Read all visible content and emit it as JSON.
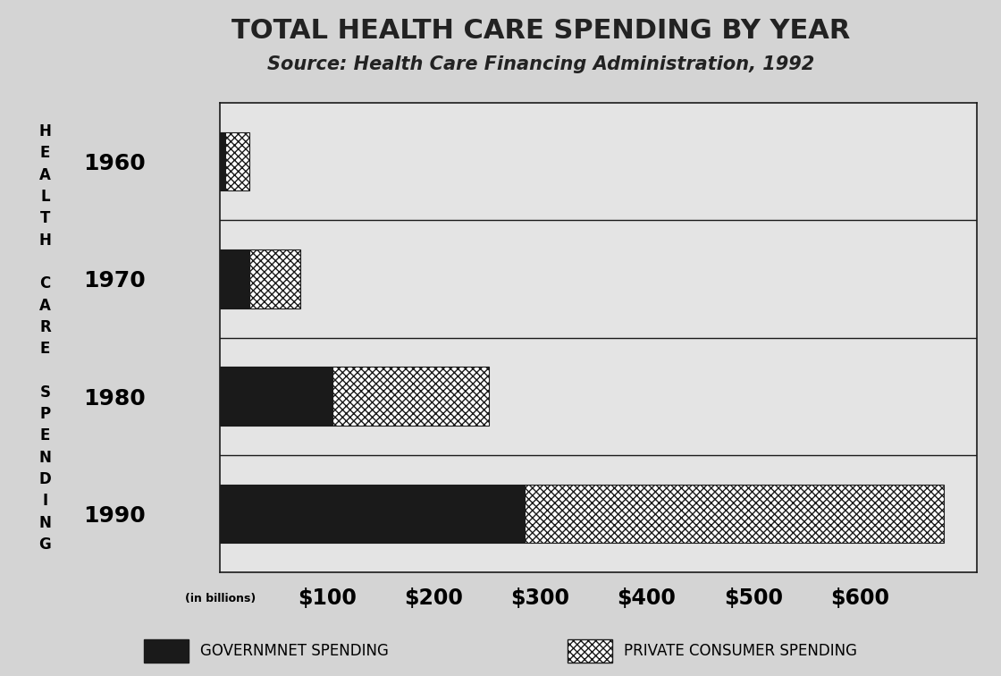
{
  "chart_data": {
    "type": "bar",
    "title": "TOTAL HEALTH CARE SPENDING BY YEAR",
    "subtitle": "Source: Health Care Financing Administration, 1992",
    "x_label": "(in billions)",
    "y_label": "HEALTH CARE SPENDING",
    "orientation": "horizontal",
    "stacked": true,
    "legend": "bottom",
    "categories": [
      "1960",
      "1970",
      "1980",
      "1990"
    ],
    "series": [
      {
        "name": "GOVERNMNET SPENDING",
        "color": "#1a1a1a",
        "values": [
          5,
          27,
          105,
          286
        ]
      },
      {
        "name": "PRIVATE CONSUMER SPENDING",
        "color": "#ffffff",
        "values": [
          22,
          48,
          147,
          393
        ]
      }
    ],
    "xlim": [
      0,
      710
    ],
    "xticks": [
      {
        "value": 100,
        "label": "$100"
      },
      {
        "value": 200,
        "label": "$200"
      },
      {
        "value": 300,
        "label": "$300"
      },
      {
        "value": 400,
        "label": "$400"
      },
      {
        "value": 500,
        "label": "$500"
      },
      {
        "value": 600,
        "label": "$600"
      }
    ],
    "grid": false
  }
}
